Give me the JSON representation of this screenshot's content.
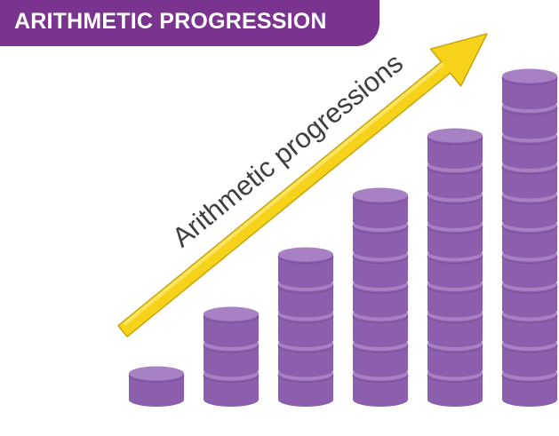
{
  "header": {
    "title": "ARITHMETIC PROGRESSION"
  },
  "diagram": {
    "arrow_label": "Arithmetic progressions",
    "stack_heights": [
      1,
      3,
      5,
      7,
      9,
      11
    ]
  },
  "colors": {
    "banner": "#7b3390",
    "coin_side": "#8b5eae",
    "coin_top": "#a781c4",
    "arrow": "#f7d21a",
    "arrow_edge": "#c9a40c",
    "label": "#3f3f3f"
  }
}
